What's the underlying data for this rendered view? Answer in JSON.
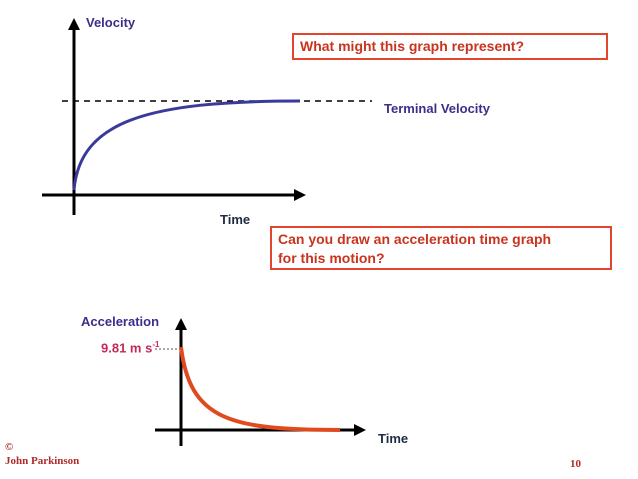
{
  "upper_graph": {
    "y_axis_label": "Velocity",
    "x_axis_label": "Time",
    "asymptote_label": "Terminal Velocity",
    "curve_color": "#3a3a9a"
  },
  "question_box_1": {
    "text": "What might this graph represent?"
  },
  "question_box_2": {
    "line1": "Can you draw an acceleration time graph",
    "line2": "for this motion?"
  },
  "lower_graph": {
    "y_axis_label": "Acceleration",
    "x_axis_label": "Time",
    "intercept_value": "9.81 m s",
    "intercept_exponent": "-1",
    "curve_color": "#e04a1f"
  },
  "footer": {
    "copyright_symbol": "©",
    "author": "John Parkinson",
    "page_number": "10"
  },
  "colors": {
    "box_border": "#e2452b",
    "box_text": "#c8341f",
    "axis": "#000000"
  }
}
